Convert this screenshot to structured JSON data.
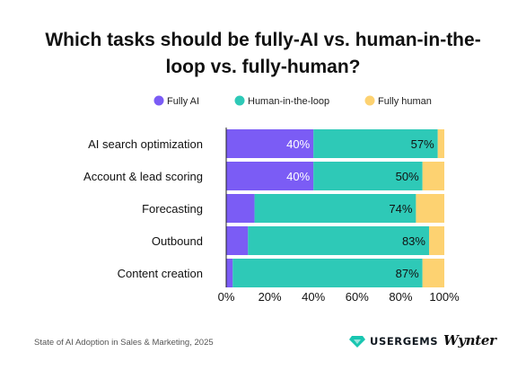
{
  "chart_data": {
    "type": "bar",
    "orientation": "horizontal",
    "stacked": true,
    "title": "Which tasks should be fully-AI vs. human-in-the-loop vs. fully-human?",
    "categories": [
      "AI search optimization",
      "Account & lead scoring",
      "Forecasting",
      "Outbound",
      "Content creation"
    ],
    "series": [
      {
        "name": "Fully AI",
        "color": "#7b5cf5",
        "values": [
          40,
          40,
          13,
          10,
          3
        ],
        "labels": [
          "40%",
          "40%",
          "",
          "",
          ""
        ]
      },
      {
        "name": "Human-in-the-loop",
        "color": "#2ec9b7",
        "values": [
          57,
          50,
          74,
          83,
          87
        ],
        "labels": [
          "57%",
          "50%",
          "74%",
          "83%",
          "87%"
        ]
      },
      {
        "name": "Fully human",
        "color": "#fdd271",
        "values": [
          3,
          10,
          13,
          7,
          10
        ],
        "labels": [
          "",
          "",
          "",
          "",
          ""
        ]
      }
    ],
    "xlim": [
      0,
      100
    ],
    "xticks": [
      "0%",
      "20%",
      "40%",
      "60%",
      "80%",
      "100%"
    ],
    "legend_position": "top",
    "grid": false
  },
  "footer": {
    "source": "State of AI Adoption in Sales & Marketing, 2025",
    "brand1": "USERGEMS",
    "brand2": "Wynter"
  }
}
